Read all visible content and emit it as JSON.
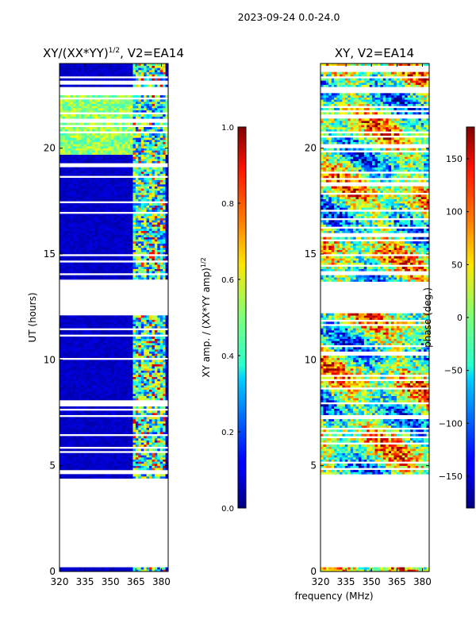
{
  "suptitle": "2023-09-24 0.0-24.0",
  "xlabel_common": "frequency (MHz)",
  "chart_data": [
    {
      "type": "heatmap",
      "title_base": "XY/(XX*YY)",
      "title_exp": "1/2",
      "title_rest": ", V2=EA14",
      "ylabel": "UT (hours)",
      "xlim": [
        320,
        384
      ],
      "ylim": [
        0,
        24
      ],
      "xticks": [
        320,
        335,
        350,
        365,
        380
      ],
      "yticks": [
        0,
        5,
        10,
        15,
        20
      ],
      "colorbar": {
        "label_base": "XY amp. / (XX*YY amp)",
        "label_exp": "1/2",
        "range": [
          0.0,
          1.0
        ],
        "ticks": [
          0.0,
          0.2,
          0.4,
          0.6,
          0.8,
          1.0
        ],
        "tick_labels": [
          "0.0",
          "0.2",
          "0.4",
          "0.6",
          "0.8",
          "1.0"
        ]
      },
      "data_ut_ranges": [
        [
          4.4,
          12.2
        ],
        [
          13.7,
          22.6
        ],
        [
          22.9,
          24.0
        ],
        [
          0.0,
          0.15
        ]
      ],
      "rfi_band_mhz": [
        363,
        383
      ]
    },
    {
      "type": "heatmap",
      "title": "XY, V2=EA14",
      "ylabel": "",
      "xlim": [
        320,
        384
      ],
      "ylim": [
        0,
        24
      ],
      "xticks": [
        320,
        335,
        350,
        365,
        380
      ],
      "yticks": [
        0,
        5,
        10,
        15,
        20
      ],
      "colorbar": {
        "label": "phase (deg.)",
        "range": [
          -180,
          180
        ],
        "ticks": [
          -150,
          -100,
          -50,
          0,
          50,
          100,
          150
        ],
        "tick_labels": [
          "−150",
          "−100",
          "−50",
          "0",
          "50",
          "100",
          "150"
        ]
      },
      "data_ut_ranges": [
        [
          4.4,
          12.2
        ],
        [
          13.7,
          22.6
        ],
        [
          22.9,
          24.0
        ],
        [
          0.0,
          0.15
        ]
      ]
    }
  ]
}
